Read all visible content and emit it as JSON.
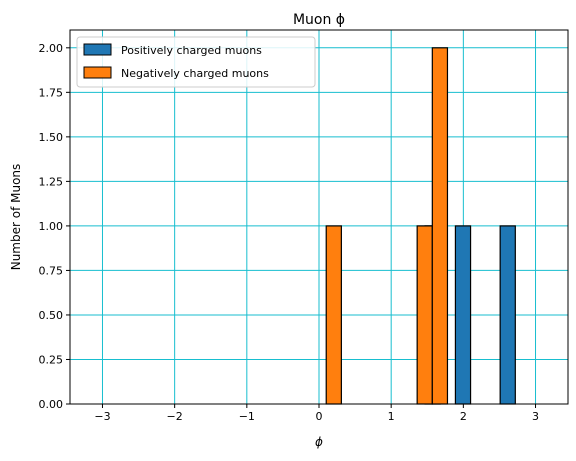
{
  "chart_data": {
    "type": "bar",
    "title": "Muon ϕ",
    "xlabel": "ϕ",
    "ylabel": "Number of Muons",
    "xlim": [
      -3.45,
      3.45
    ],
    "ylim": [
      0,
      2.1
    ],
    "bin_width": 0.2094,
    "x_ticks": [
      -3,
      -2,
      -1,
      0,
      1,
      2,
      3
    ],
    "x_tick_labels": [
      "−3",
      "−2",
      "−1",
      "0",
      "1",
      "2",
      "3"
    ],
    "y_ticks": [
      0,
      0.25,
      0.5,
      0.75,
      1.0,
      1.25,
      1.5,
      1.75,
      2.0
    ],
    "y_tick_labels": [
      "0.00",
      "0.25",
      "0.50",
      "0.75",
      "1.00",
      "1.25",
      "1.50",
      "1.75",
      "2.00"
    ],
    "grid": true,
    "legend_position": "top-left",
    "series": [
      {
        "name": "Positively charged muons",
        "color": "#1f77b4",
        "bins": [
          {
            "x_left": 1.47,
            "x_right": 1.68,
            "value": 1
          },
          {
            "x_left": 1.89,
            "x_right": 2.1,
            "value": 1
          },
          {
            "x_left": 2.51,
            "x_right": 2.72,
            "value": 1
          }
        ]
      },
      {
        "name": "Negatively charged muons",
        "color": "#ff7f0e",
        "bins": [
          {
            "x_left": 0.1,
            "x_right": 0.31,
            "value": 1
          },
          {
            "x_left": 1.36,
            "x_right": 1.57,
            "value": 1
          },
          {
            "x_left": 1.57,
            "x_right": 1.78,
            "value": 2
          }
        ]
      }
    ],
    "colors": {
      "grid": "#17becf",
      "edge": "#000000"
    }
  }
}
